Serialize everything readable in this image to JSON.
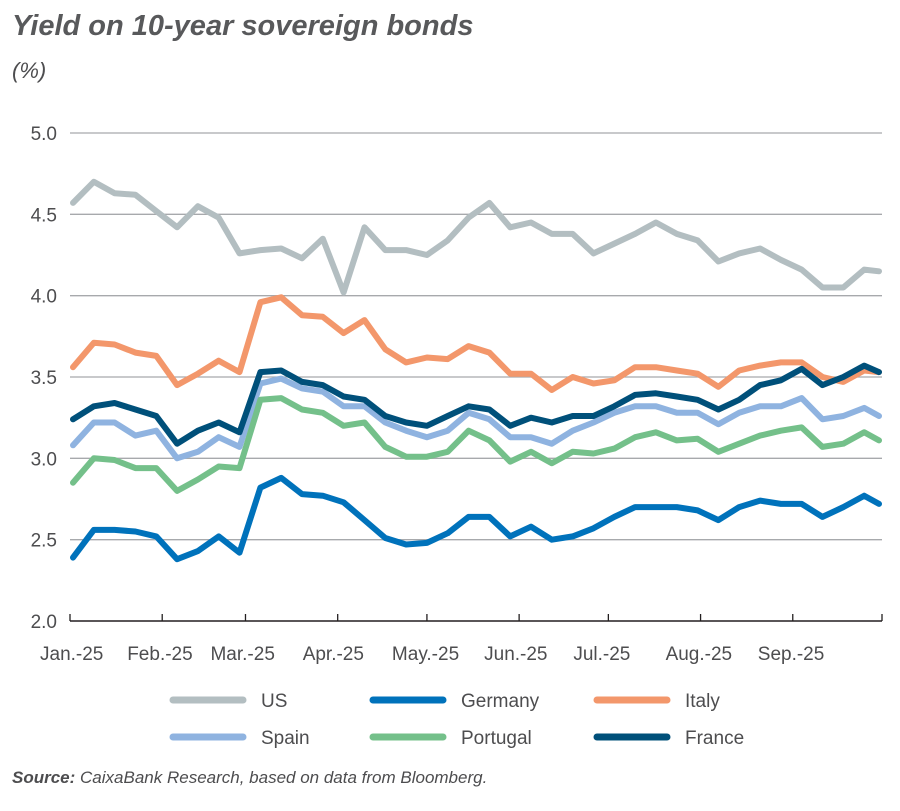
{
  "title": "Yield on 10-year sovereign bonds",
  "unit": "(%)",
  "source_label": "Source:",
  "source_text": "CaixaBank Research, based on data from Bloomberg.",
  "chart_data": {
    "type": "line",
    "title": "Yield on 10-year sovereign bonds",
    "ylabel": "(%)",
    "xlabel": "",
    "ylim": [
      2.0,
      5.0
    ],
    "yticks": [
      2.0,
      2.5,
      3.0,
      3.5,
      4.0,
      4.5,
      5.0
    ],
    "ytick_labels": [
      "2.0",
      "2.5",
      "3.0",
      "3.5",
      "4.0",
      "4.5",
      "5.0"
    ],
    "xlim": [
      "2025-01-01",
      "2025-10-01"
    ],
    "xticks": [
      "2025-01-01",
      "2025-02-01",
      "2025-03-01",
      "2025-04-01",
      "2025-05-01",
      "2025-06-01",
      "2025-07-01",
      "2025-08-01",
      "2025-09-01",
      "2025-10-01"
    ],
    "xtick_labels": [
      "Jan.-25",
      "Feb.-25",
      "Mar.-25",
      "Apr.-25",
      "May.-25",
      "Jun.-25",
      "Jul.-25",
      "Aug.-25",
      "Sep.-25"
    ],
    "grid": "horizontal",
    "legend_position": "bottom",
    "x": [
      "2025-01-02",
      "2025-01-09",
      "2025-01-16",
      "2025-01-23",
      "2025-01-30",
      "2025-02-06",
      "2025-02-13",
      "2025-02-20",
      "2025-02-27",
      "2025-03-06",
      "2025-03-13",
      "2025-03-20",
      "2025-03-27",
      "2025-04-03",
      "2025-04-10",
      "2025-04-17",
      "2025-04-24",
      "2025-05-01",
      "2025-05-08",
      "2025-05-15",
      "2025-05-22",
      "2025-05-29",
      "2025-06-05",
      "2025-06-12",
      "2025-06-19",
      "2025-06-26",
      "2025-07-03",
      "2025-07-10",
      "2025-07-17",
      "2025-07-24",
      "2025-07-31",
      "2025-08-07",
      "2025-08-14",
      "2025-08-21",
      "2025-08-28",
      "2025-09-04",
      "2025-09-11",
      "2025-09-18",
      "2025-09-25",
      "2025-09-30"
    ],
    "series": [
      {
        "name": "US",
        "color": "#b3bec1",
        "values": [
          4.57,
          4.7,
          4.63,
          4.62,
          4.52,
          4.42,
          4.55,
          4.48,
          4.26,
          4.28,
          4.29,
          4.23,
          4.35,
          4.02,
          4.42,
          4.28,
          4.28,
          4.25,
          4.34,
          4.48,
          4.57,
          4.42,
          4.45,
          4.38,
          4.38,
          4.26,
          4.32,
          4.38,
          4.45,
          4.38,
          4.34,
          4.21,
          4.26,
          4.29,
          4.22,
          4.16,
          4.05,
          4.05,
          4.16,
          4.15
        ]
      },
      {
        "name": "Germany",
        "color": "#0072bb",
        "values": [
          2.39,
          2.56,
          2.56,
          2.55,
          2.52,
          2.38,
          2.43,
          2.52,
          2.42,
          2.82,
          2.88,
          2.78,
          2.77,
          2.73,
          2.62,
          2.51,
          2.47,
          2.48,
          2.54,
          2.64,
          2.64,
          2.52,
          2.58,
          2.5,
          2.52,
          2.57,
          2.64,
          2.7,
          2.7,
          2.7,
          2.68,
          2.62,
          2.7,
          2.74,
          2.72,
          2.72,
          2.64,
          2.7,
          2.77,
          2.72
        ]
      },
      {
        "name": "Italy",
        "color": "#f3976b",
        "values": [
          3.56,
          3.71,
          3.7,
          3.65,
          3.63,
          3.45,
          3.52,
          3.6,
          3.53,
          3.96,
          3.99,
          3.88,
          3.87,
          3.77,
          3.85,
          3.67,
          3.59,
          3.62,
          3.61,
          3.69,
          3.65,
          3.52,
          3.52,
          3.42,
          3.5,
          3.46,
          3.48,
          3.56,
          3.56,
          3.54,
          3.52,
          3.44,
          3.54,
          3.57,
          3.59,
          3.59,
          3.5,
          3.47,
          3.54,
          3.53
        ]
      },
      {
        "name": "Spain",
        "color": "#8fb3e0",
        "values": [
          3.08,
          3.22,
          3.22,
          3.14,
          3.17,
          3.0,
          3.04,
          3.13,
          3.07,
          3.46,
          3.49,
          3.43,
          3.41,
          3.32,
          3.32,
          3.22,
          3.17,
          3.13,
          3.17,
          3.28,
          3.24,
          3.13,
          3.13,
          3.09,
          3.17,
          3.22,
          3.28,
          3.32,
          3.32,
          3.28,
          3.28,
          3.21,
          3.28,
          3.32,
          3.32,
          3.37,
          3.24,
          3.26,
          3.31,
          3.26
        ]
      },
      {
        "name": "Portugal",
        "color": "#74c08a",
        "values": [
          2.85,
          3.0,
          2.99,
          2.94,
          2.94,
          2.8,
          2.87,
          2.95,
          2.94,
          3.36,
          3.37,
          3.3,
          3.28,
          3.2,
          3.22,
          3.07,
          3.01,
          3.01,
          3.04,
          3.17,
          3.11,
          2.98,
          3.04,
          2.97,
          3.04,
          3.03,
          3.06,
          3.13,
          3.16,
          3.11,
          3.12,
          3.04,
          3.09,
          3.14,
          3.17,
          3.19,
          3.07,
          3.09,
          3.16,
          3.11
        ]
      },
      {
        "name": "France",
        "color": "#00507a",
        "values": [
          3.24,
          3.32,
          3.34,
          3.3,
          3.26,
          3.09,
          3.17,
          3.22,
          3.16,
          3.53,
          3.54,
          3.47,
          3.45,
          3.38,
          3.36,
          3.26,
          3.22,
          3.2,
          3.26,
          3.32,
          3.3,
          3.2,
          3.25,
          3.22,
          3.26,
          3.26,
          3.32,
          3.39,
          3.4,
          3.38,
          3.36,
          3.3,
          3.36,
          3.45,
          3.48,
          3.55,
          3.45,
          3.5,
          3.57,
          3.53
        ]
      }
    ],
    "draw_order": [
      "US",
      "Germany",
      "Italy",
      "Spain",
      "Portugal",
      "France"
    ],
    "legend_rows": [
      [
        "US",
        "Germany",
        "Italy"
      ],
      [
        "Spain",
        "Portugal",
        "France"
      ]
    ]
  }
}
